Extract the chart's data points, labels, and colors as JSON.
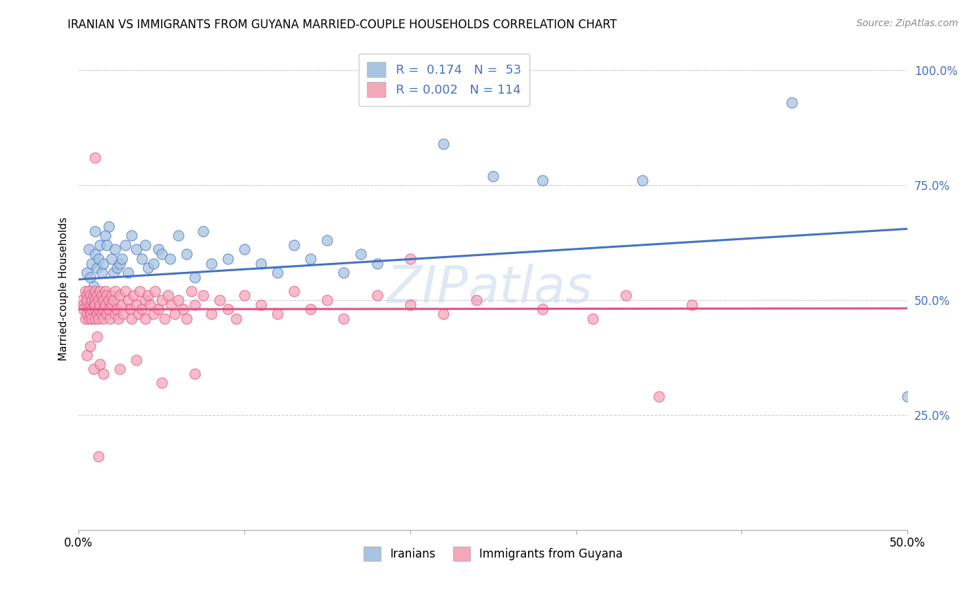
{
  "title": "IRANIAN VS IMMIGRANTS FROM GUYANA MARRIED-COUPLE HOUSEHOLDS CORRELATION CHART",
  "source": "Source: ZipAtlas.com",
  "ylabel": "Married-couple Households",
  "xlabel_iranians": "Iranians",
  "xlabel_guyana": "Immigrants from Guyana",
  "xmin": 0.0,
  "xmax": 0.5,
  "ymin": 0.0,
  "ymax": 1.05,
  "color_iranian": "#a8c4e0",
  "color_guyana": "#f4a7b9",
  "color_iranian_line": "#4472c4",
  "color_guyana_line": "#e05080",
  "R_iranian": 0.174,
  "N_iranian": 53,
  "R_guyana": 0.002,
  "N_guyana": 114,
  "legend_color": "#4472c4",
  "background_color": "#ffffff",
  "iran_line_y0": 0.545,
  "iran_line_y1": 0.655,
  "guyana_line_y0": 0.48,
  "guyana_line_y1": 0.482,
  "iranian_x": [
    0.005,
    0.006,
    0.007,
    0.008,
    0.009,
    0.01,
    0.01,
    0.011,
    0.012,
    0.013,
    0.014,
    0.015,
    0.016,
    0.017,
    0.018,
    0.02,
    0.021,
    0.022,
    0.023,
    0.025,
    0.026,
    0.028,
    0.03,
    0.032,
    0.035,
    0.038,
    0.04,
    0.042,
    0.045,
    0.048,
    0.05,
    0.055,
    0.06,
    0.065,
    0.07,
    0.075,
    0.08,
    0.09,
    0.1,
    0.11,
    0.12,
    0.13,
    0.14,
    0.15,
    0.16,
    0.17,
    0.18,
    0.22,
    0.25,
    0.28,
    0.34,
    0.43,
    0.5
  ],
  "iranian_y": [
    0.56,
    0.61,
    0.55,
    0.58,
    0.53,
    0.6,
    0.65,
    0.57,
    0.59,
    0.62,
    0.56,
    0.58,
    0.64,
    0.62,
    0.66,
    0.59,
    0.56,
    0.61,
    0.57,
    0.58,
    0.59,
    0.62,
    0.56,
    0.64,
    0.61,
    0.59,
    0.62,
    0.57,
    0.58,
    0.61,
    0.6,
    0.59,
    0.64,
    0.6,
    0.55,
    0.65,
    0.58,
    0.59,
    0.61,
    0.58,
    0.56,
    0.62,
    0.59,
    0.63,
    0.56,
    0.6,
    0.58,
    0.84,
    0.77,
    0.76,
    0.76,
    0.93,
    0.29
  ],
  "guyana_x": [
    0.002,
    0.003,
    0.003,
    0.004,
    0.004,
    0.005,
    0.005,
    0.005,
    0.005,
    0.006,
    0.006,
    0.006,
    0.007,
    0.007,
    0.007,
    0.008,
    0.008,
    0.008,
    0.009,
    0.009,
    0.01,
    0.01,
    0.01,
    0.01,
    0.01,
    0.011,
    0.011,
    0.012,
    0.012,
    0.012,
    0.013,
    0.013,
    0.014,
    0.014,
    0.015,
    0.015,
    0.015,
    0.016,
    0.016,
    0.017,
    0.017,
    0.018,
    0.018,
    0.019,
    0.02,
    0.02,
    0.021,
    0.022,
    0.022,
    0.023,
    0.024,
    0.025,
    0.026,
    0.027,
    0.028,
    0.03,
    0.031,
    0.032,
    0.033,
    0.035,
    0.036,
    0.037,
    0.038,
    0.04,
    0.04,
    0.042,
    0.043,
    0.045,
    0.046,
    0.048,
    0.05,
    0.052,
    0.054,
    0.056,
    0.058,
    0.06,
    0.063,
    0.065,
    0.068,
    0.07,
    0.075,
    0.08,
    0.085,
    0.09,
    0.095,
    0.1,
    0.11,
    0.12,
    0.13,
    0.14,
    0.15,
    0.16,
    0.18,
    0.2,
    0.22,
    0.24,
    0.28,
    0.31,
    0.33,
    0.37,
    0.01,
    0.012,
    0.2,
    0.35,
    0.005,
    0.007,
    0.009,
    0.011,
    0.013,
    0.015,
    0.025,
    0.035,
    0.05,
    0.07
  ],
  "guyana_y": [
    0.5,
    0.49,
    0.48,
    0.52,
    0.46,
    0.51,
    0.49,
    0.47,
    0.5,
    0.48,
    0.46,
    0.52,
    0.49,
    0.51,
    0.47,
    0.5,
    0.48,
    0.46,
    0.51,
    0.49,
    0.5,
    0.48,
    0.46,
    0.52,
    0.49,
    0.47,
    0.51,
    0.5,
    0.48,
    0.46,
    0.52,
    0.49,
    0.51,
    0.47,
    0.5,
    0.48,
    0.46,
    0.52,
    0.49,
    0.51,
    0.47,
    0.5,
    0.48,
    0.46,
    0.51,
    0.49,
    0.5,
    0.47,
    0.52,
    0.48,
    0.46,
    0.51,
    0.49,
    0.47,
    0.52,
    0.5,
    0.48,
    0.46,
    0.51,
    0.49,
    0.47,
    0.52,
    0.48,
    0.5,
    0.46,
    0.51,
    0.49,
    0.47,
    0.52,
    0.48,
    0.5,
    0.46,
    0.51,
    0.49,
    0.47,
    0.5,
    0.48,
    0.46,
    0.52,
    0.49,
    0.51,
    0.47,
    0.5,
    0.48,
    0.46,
    0.51,
    0.49,
    0.47,
    0.52,
    0.48,
    0.5,
    0.46,
    0.51,
    0.49,
    0.47,
    0.5,
    0.48,
    0.46,
    0.51,
    0.49,
    0.81,
    0.16,
    0.59,
    0.29,
    0.38,
    0.4,
    0.35,
    0.42,
    0.36,
    0.34,
    0.35,
    0.37,
    0.32,
    0.34
  ]
}
